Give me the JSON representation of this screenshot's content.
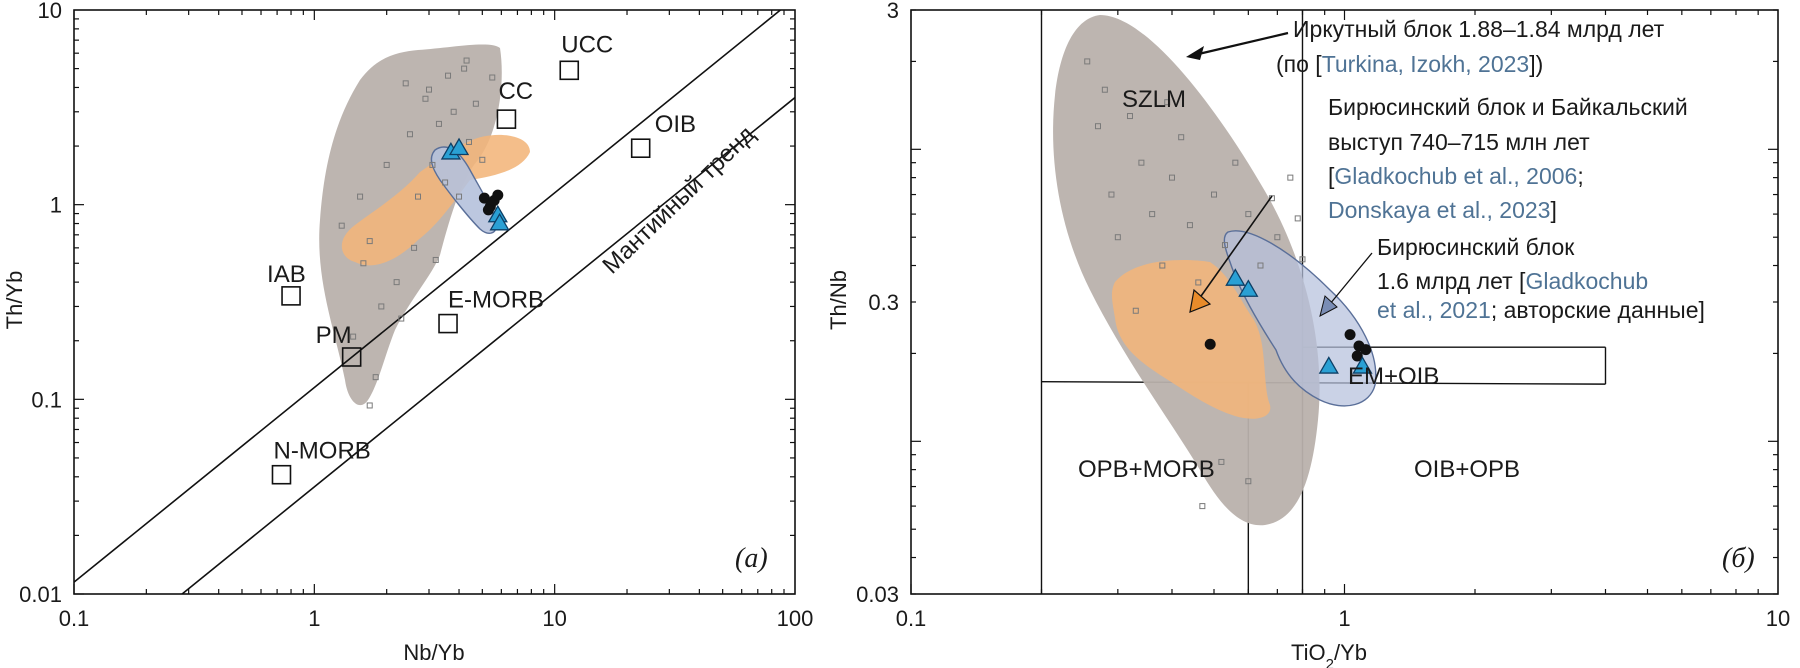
{
  "colors": {
    "gray_field": "#b9b1ac",
    "orange_field": "#f2b57a",
    "blue_field": "#b5c1dc",
    "blue_field_stroke": "#5a6f99",
    "triangle": "#2aa0d4",
    "dot": "#111111",
    "citation": "#4f7395",
    "arrow_orange": "#e88b2a",
    "arrow_blue": "#7a8db5"
  },
  "chart_data": [
    {
      "type": "scatter",
      "panel_label": "(а)",
      "xlabel": "Nb/Yb",
      "ylabel": "Th/Yb",
      "xscale": "log",
      "yscale": "log",
      "xlim": [
        0.1,
        100
      ],
      "ylim": [
        0.01,
        10
      ],
      "x_ticks": [
        "0.1",
        "1",
        "10",
        "100"
      ],
      "y_ticks": [
        "0.01",
        "0.1",
        "1",
        "10"
      ],
      "trend_label": "Мантийный тренд",
      "reference_points": [
        {
          "label": "UCC",
          "x": 11.5,
          "y": 4.9
        },
        {
          "label": "CC",
          "x": 6.3,
          "y": 2.75
        },
        {
          "label": "OIB",
          "x": 22.8,
          "y": 1.95
        },
        {
          "label": "IAB",
          "x": 0.8,
          "y": 0.34
        },
        {
          "label": "E-MORB",
          "x": 3.6,
          "y": 0.245
        },
        {
          "label": "PM",
          "x": 1.43,
          "y": 0.165
        },
        {
          "label": "N-MORB",
          "x": 0.73,
          "y": 0.041
        }
      ],
      "series": [
        {
          "marker": "triangle",
          "points": [
            [
              3.7,
              1.85
            ],
            [
              4.0,
              1.95
            ],
            [
              5.8,
              0.88
            ],
            [
              5.9,
              0.8
            ]
          ]
        },
        {
          "marker": "dot",
          "points": [
            [
              5.1,
              1.08
            ],
            [
              5.4,
              0.98
            ],
            [
              5.6,
              1.05
            ],
            [
              5.8,
              1.12
            ],
            [
              5.3,
              0.94
            ]
          ]
        },
        {
          "marker": "small-square",
          "points": [
            [
              1.3,
              0.78
            ],
            [
              1.55,
              1.1
            ],
            [
              1.7,
              0.65
            ],
            [
              2.0,
              1.6
            ],
            [
              2.2,
              0.4
            ],
            [
              2.5,
              2.3
            ],
            [
              2.7,
              1.1
            ],
            [
              2.9,
              3.5
            ],
            [
              3.1,
              1.6
            ],
            [
              3.3,
              2.6
            ],
            [
              3.5,
              1.3
            ],
            [
              3.6,
              4.6
            ],
            [
              3.8,
              3.0
            ],
            [
              4.0,
              1.1
            ],
            [
              4.2,
              5.0
            ],
            [
              4.4,
              2.1
            ],
            [
              4.7,
              3.3
            ],
            [
              5.0,
              1.7
            ],
            [
              5.5,
              4.5
            ],
            [
              1.9,
              0.3
            ],
            [
              1.6,
              0.5
            ],
            [
              2.6,
              0.6
            ],
            [
              3.2,
              0.52
            ],
            [
              1.45,
              0.21
            ],
            [
              2.3,
              0.26
            ],
            [
              3.0,
              3.9
            ],
            [
              1.8,
              0.13
            ],
            [
              1.7,
              0.093
            ],
            [
              4.3,
              5.5
            ],
            [
              2.4,
              4.2
            ]
          ]
        }
      ]
    },
    {
      "type": "scatter",
      "panel_label": "(б)",
      "xlabel": "TiO",
      "xlabel_sub": "2",
      "xlabel_tail": "/Yb",
      "ylabel": "Th/Nb",
      "xscale": "log",
      "yscale": "log",
      "xlim": [
        0.1,
        10
      ],
      "ylim": [
        0.03,
        3
      ],
      "x_ticks": [
        "0.1",
        "1",
        "10"
      ],
      "y_ticks": [
        "0.03",
        "0.3",
        "3"
      ],
      "field_labels": [
        "SZLM",
        "EM+OIB",
        "OPB+MORB",
        "OIB+OPB"
      ],
      "series": [
        {
          "marker": "triangle",
          "points": [
            [
              0.56,
              0.36
            ],
            [
              0.6,
              0.33
            ],
            [
              0.92,
              0.18
            ],
            [
              1.1,
              0.18
            ]
          ]
        },
        {
          "marker": "dot",
          "points": [
            [
              0.49,
              0.215
            ],
            [
              1.03,
              0.232
            ],
            [
              1.08,
              0.212
            ],
            [
              1.12,
              0.206
            ],
            [
              1.07,
              0.196
            ]
          ]
        },
        {
          "marker": "small-square",
          "points": [
            [
              0.255,
              2.0
            ],
            [
              0.27,
              1.2
            ],
            [
              0.29,
              0.7
            ],
            [
              0.3,
              0.5
            ],
            [
              0.32,
              1.3
            ],
            [
              0.34,
              0.9
            ],
            [
              0.36,
              0.6
            ],
            [
              0.38,
              0.4
            ],
            [
              0.4,
              0.8
            ],
            [
              0.42,
              1.1
            ],
            [
              0.44,
              0.55
            ],
            [
              0.46,
              0.35
            ],
            [
              0.5,
              0.7
            ],
            [
              0.53,
              0.47
            ],
            [
              0.56,
              0.9
            ],
            [
              0.6,
              0.6
            ],
            [
              0.64,
              0.4
            ],
            [
              0.7,
              0.5
            ],
            [
              0.75,
              0.8
            ],
            [
              0.47,
              0.06
            ],
            [
              0.52,
              0.085
            ],
            [
              0.6,
              0.073
            ],
            [
              0.28,
              1.6
            ],
            [
              0.33,
              0.28
            ],
            [
              0.78,
              0.58
            ],
            [
              0.68,
              0.68
            ],
            [
              0.39,
              1.45
            ],
            [
              0.8,
              0.42
            ]
          ]
        }
      ]
    }
  ],
  "legend_notes": {
    "irkut_line1": "Иркутный блок 1.88–1.84 млрд лет",
    "irkut_line2_pre": "(по [",
    "irkut_line2_cite": "Turkina, Izokh, 2023",
    "irkut_line2_post": "])",
    "biryusa1_line1": "Бирюсинский блок и Байкальский",
    "biryusa1_line2": "выступ 740–715 млн лет",
    "biryusa1_line3_pre": "[",
    "biryusa1_line3_cite": "Gladkochub et al., 2006",
    "biryusa1_line3_post": ";",
    "biryusa1_line4_cite": "Donskaya et al., 2023",
    "biryusa1_line4_post": "]",
    "biryusa2_line1": "Бирюсинский блок",
    "biryusa2_line2_pre": "1.6 млрд лет [",
    "biryusa2_line2_cite": "Gladkochub",
    "biryusa2_line3_cite": "et al., 2021",
    "biryusa2_line3_post": "; авторские данные]"
  }
}
